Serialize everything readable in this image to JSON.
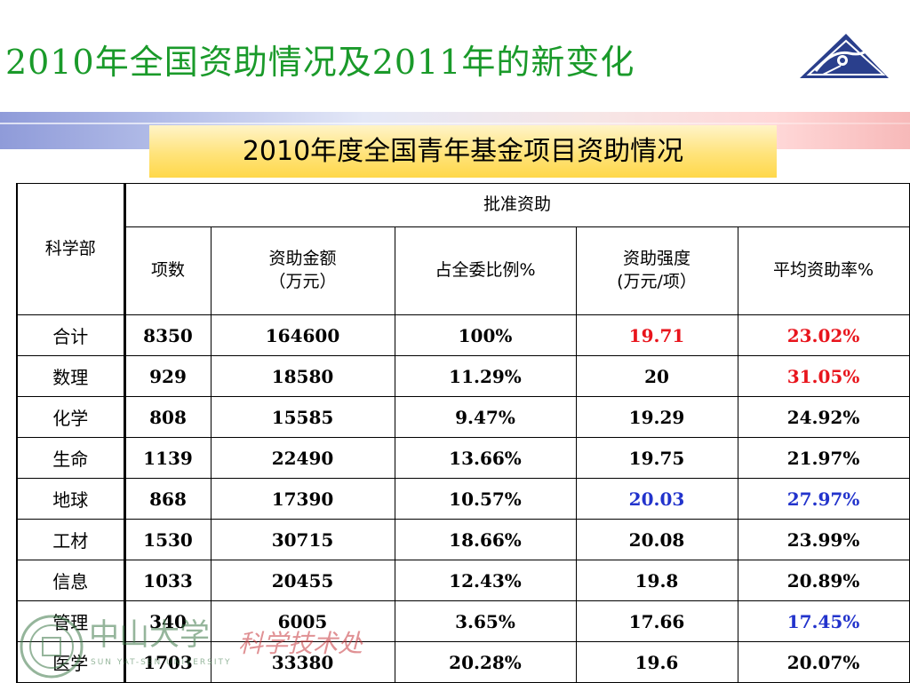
{
  "title": "2010年全国资助情况及2011年的新变化",
  "subtitle": "2010年度全国青年基金项目资助情况",
  "logo": {
    "icon": "university-triangle-logo-icon"
  },
  "watermark": {
    "emblem_icon": "sun-yat-sen-university-emblem-icon",
    "school_name": "中山大学",
    "dept_name": "科学技术处",
    "school_name_en": "SUN YAT-SEN UNIVERSITY"
  },
  "table": {
    "header": {
      "dept": "科学部",
      "group": "批准资助",
      "columns": [
        {
          "line1": "项数",
          "line2": ""
        },
        {
          "line1": "资助金额",
          "line2": "（万元）"
        },
        {
          "line1": "占全委比例%",
          "line2": ""
        },
        {
          "line1": "资助强度",
          "line2": "(万元/项）"
        },
        {
          "line1": "平均资助率%",
          "line2": ""
        }
      ]
    },
    "rows": [
      {
        "name": "合计",
        "count": "8350",
        "amount": "164600",
        "ratio": "100%",
        "intensity": "19.71",
        "rate": "23.02%"
      },
      {
        "name": "数理",
        "count": "929",
        "amount": "18580",
        "ratio": "11.29%",
        "intensity": "20",
        "rate": "31.05%"
      },
      {
        "name": "化学",
        "count": "808",
        "amount": "15585",
        "ratio": "9.47%",
        "intensity": "19.29",
        "rate": "24.92%"
      },
      {
        "name": "生命",
        "count": "1139",
        "amount": "22490",
        "ratio": "13.66%",
        "intensity": "19.75",
        "rate": "21.97%"
      },
      {
        "name": "地球",
        "count": "868",
        "amount": "17390",
        "ratio": "10.57%",
        "intensity": "20.03",
        "rate": "27.97%"
      },
      {
        "name": "工材",
        "count": "1530",
        "amount": "30715",
        "ratio": "18.66%",
        "intensity": "20.08",
        "rate": "23.99%"
      },
      {
        "name": "信息",
        "count": "1033",
        "amount": "20455",
        "ratio": "12.43%",
        "intensity": "19.8",
        "rate": "20.89%"
      },
      {
        "name": "管理",
        "count": "340",
        "amount": "6005",
        "ratio": "3.65%",
        "intensity": "17.66",
        "rate": "17.45%"
      },
      {
        "name": "医学",
        "count": "1703",
        "amount": "33380",
        "ratio": "20.28%",
        "intensity": "19.6",
        "rate": "20.07%"
      }
    ]
  },
  "colors": {
    "title": "#1a9a2a",
    "highlight_red": "#e8141c",
    "highlight_blue": "#2233cc",
    "subtitle_bg": "#ffe37a"
  }
}
